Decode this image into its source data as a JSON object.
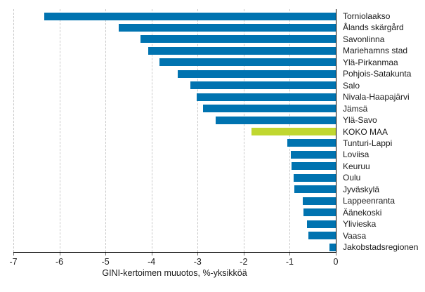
{
  "chart_data": {
    "type": "bar",
    "orientation": "horizontal",
    "title": "",
    "xlabel": "GINI-kertoimen muuotos, %-yksikköä",
    "ylabel": "",
    "categories": [
      "Torniolaakso",
      "Ålands skärgård",
      "Savonlinna",
      "Mariehamns stad",
      "Ylä-Pirkanmaa",
      "Pohjois-Satakunta",
      "Salo",
      "Nivala-Haapajärvi",
      "Jämsä",
      "Ylä-Savo",
      "KOKO MAA",
      "Tunturi-Lappi",
      "Loviisa",
      "Keuruu",
      "Oulu",
      "Jyväskylä",
      "Lappeenranta",
      "Äänekoski",
      "Ylivieska",
      "Vaasa",
      "Jakobstadsregionen"
    ],
    "values": [
      -6.33,
      -4.71,
      -4.24,
      -4.07,
      -3.83,
      -3.43,
      -3.16,
      -3.02,
      -2.88,
      -2.61,
      -1.83,
      -1.05,
      -0.97,
      -0.96,
      -0.92,
      -0.9,
      -0.71,
      -0.7,
      -0.62,
      -0.6,
      -0.13
    ],
    "highlight_category": "KOKO MAA",
    "xlim": [
      -7,
      0
    ],
    "xticks": [
      "-7",
      "-6",
      "-5",
      "-4",
      "-3",
      "-2",
      "-1",
      "0"
    ],
    "xtick_values": [
      -7,
      -6,
      -5,
      -4,
      -3,
      -2,
      -1,
      0
    ],
    "grid": "vertical-dashed",
    "legend": "none",
    "colors": {
      "bar": "#0073B0",
      "highlight": "#C0D730",
      "grid": "#C9C9C9",
      "axis": "#000000",
      "background": "#FFFFFF"
    }
  }
}
